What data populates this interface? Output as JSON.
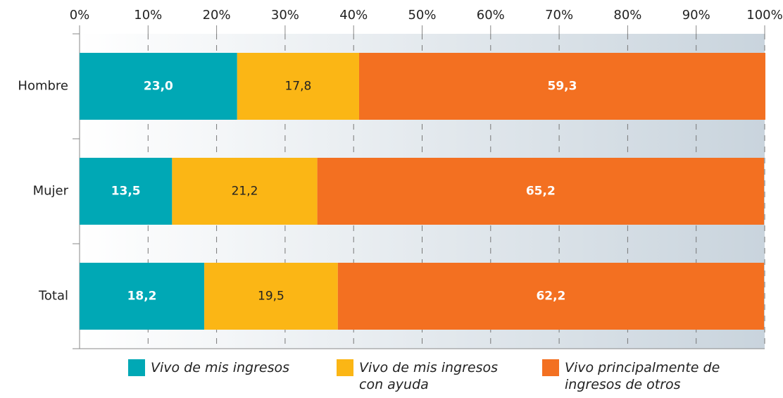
{
  "chart_data": {
    "type": "stacked-barh",
    "categories": [
      "Hombre",
      "Mujer",
      "Total"
    ],
    "series": [
      {
        "name": "Vivo de mis ingresos",
        "color": "#00a8b5",
        "values": [
          23.0,
          13.5,
          18.2
        ],
        "value_labels": [
          "23,0",
          "13,5",
          "18,2"
        ]
      },
      {
        "name": "Vivo de mis ingresos con ayuda",
        "color": "#fbb615",
        "values": [
          17.8,
          21.2,
          19.5
        ],
        "value_labels": [
          "17,8",
          "21,2",
          "19,5"
        ]
      },
      {
        "name": "Vivo principalmente de ingresos de otros",
        "color": "#f37021",
        "values": [
          59.3,
          65.2,
          62.2
        ],
        "value_labels": [
          "59,3",
          "65,2",
          "62,2"
        ]
      }
    ],
    "xlim": [
      0,
      100
    ],
    "xticks": [
      {
        "value": 0,
        "label": "0%"
      },
      {
        "value": 10,
        "label": "10%"
      },
      {
        "value": 20,
        "label": "20%"
      },
      {
        "value": 30,
        "label": "30%"
      },
      {
        "value": 40,
        "label": "40%"
      },
      {
        "value": 50,
        "label": "50%"
      },
      {
        "value": 60,
        "label": "60%"
      },
      {
        "value": 70,
        "label": "70%"
      },
      {
        "value": 80,
        "label": "80%"
      },
      {
        "value": 90,
        "label": "90%"
      },
      {
        "value": 100,
        "label": "100%"
      }
    ],
    "grid": true,
    "legend": "bottom"
  }
}
